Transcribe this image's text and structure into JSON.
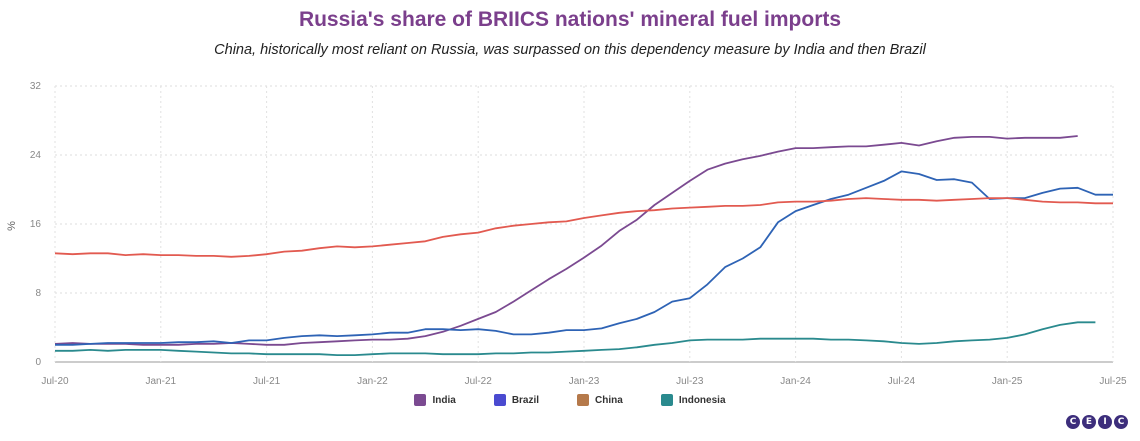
{
  "header": {
    "title": "Russia's share of BRIICS nations' mineral fuel imports",
    "subtitle": "China, historically most reliant on Russia, was surpassed on this dependency measure by India and then Brazil"
  },
  "logo": {
    "letters": [
      "C",
      "E",
      "I",
      "C"
    ],
    "colors": [
      "#3d2e7c",
      "#3d2e7c",
      "#3d2e7c",
      "#3d2e7c"
    ]
  },
  "chart_data": {
    "type": "line",
    "title": "Russia's share of BRIICS nations' mineral fuel imports",
    "ylabel": "%",
    "ylim": [
      0,
      32
    ],
    "yticks": [
      0,
      8,
      16,
      24,
      32
    ],
    "x_range_months": [
      0,
      60
    ],
    "xticks": [
      {
        "label": "Jul-20",
        "m": 0
      },
      {
        "label": "Jan-21",
        "m": 6
      },
      {
        "label": "Jul-21",
        "m": 12
      },
      {
        "label": "Jan-22",
        "m": 18
      },
      {
        "label": "Jul-22",
        "m": 24
      },
      {
        "label": "Jan-23",
        "m": 30
      },
      {
        "label": "Jul-23",
        "m": 36
      },
      {
        "label": "Jan-24",
        "m": 42
      },
      {
        "label": "Jul-24",
        "m": 48
      },
      {
        "label": "Jan-25",
        "m": 54
      },
      {
        "label": "Jul-25",
        "m": 60
      }
    ],
    "grid": true,
    "series": [
      {
        "name": "India",
        "color": "#7b4a91",
        "legend_color": "#7b4a91",
        "start": 0,
        "values": [
          2.1,
          2.2,
          2.1,
          2.1,
          2.1,
          2.0,
          2.0,
          2.0,
          2.1,
          2.1,
          2.2,
          2.1,
          2.0,
          2.0,
          2.2,
          2.3,
          2.4,
          2.5,
          2.6,
          2.6,
          2.7,
          3.0,
          3.5,
          4.2,
          5.0,
          5.8,
          7.0,
          8.3,
          9.6,
          10.8,
          12.1,
          13.5,
          15.2,
          16.5,
          18.2,
          19.6,
          21.0,
          22.3,
          23.0,
          23.5,
          23.9,
          24.4,
          24.8,
          24.8,
          24.9,
          25.0,
          25.0,
          25.2,
          25.4,
          25.1,
          25.6,
          26.0,
          26.1,
          26.1,
          25.9,
          26.0,
          26.0,
          26.0,
          26.2
        ]
      },
      {
        "name": "Brazil",
        "color": "#2e63b5",
        "legend_color": "#4a4ad0",
        "start": 0,
        "values": [
          2.0,
          2.0,
          2.1,
          2.2,
          2.2,
          2.2,
          2.2,
          2.3,
          2.3,
          2.4,
          2.2,
          2.5,
          2.5,
          2.8,
          3.0,
          3.1,
          3.0,
          3.1,
          3.2,
          3.4,
          3.4,
          3.8,
          3.8,
          3.7,
          3.8,
          3.6,
          3.2,
          3.2,
          3.4,
          3.7,
          3.7,
          3.9,
          4.5,
          5.0,
          5.8,
          7.0,
          7.4,
          9.0,
          11.0,
          12.0,
          13.3,
          16.2,
          17.5,
          18.2,
          18.9,
          19.4,
          20.2,
          21.0,
          22.1,
          21.8,
          21.1,
          21.2,
          20.8,
          18.9,
          19.0,
          19.0,
          19.6,
          20.1,
          20.2,
          19.4,
          19.4
        ]
      },
      {
        "name": "China",
        "color": "#e25a50",
        "legend_color": "#b5794a",
        "start": 0,
        "values": [
          12.6,
          12.5,
          12.6,
          12.6,
          12.4,
          12.5,
          12.4,
          12.4,
          12.3,
          12.3,
          12.2,
          12.3,
          12.5,
          12.8,
          12.9,
          13.2,
          13.4,
          13.3,
          13.4,
          13.6,
          13.8,
          14.0,
          14.5,
          14.8,
          15.0,
          15.5,
          15.8,
          16.0,
          16.2,
          16.3,
          16.7,
          17.0,
          17.3,
          17.5,
          17.6,
          17.8,
          17.9,
          18.0,
          18.1,
          18.1,
          18.2,
          18.5,
          18.6,
          18.6,
          18.7,
          18.9,
          19.0,
          18.9,
          18.8,
          18.8,
          18.7,
          18.8,
          18.9,
          19.0,
          19.0,
          18.8,
          18.6,
          18.5,
          18.5,
          18.4,
          18.4
        ]
      },
      {
        "name": "Indonesia",
        "color": "#2a8a8e",
        "legend_color": "#2a8a8e",
        "start": 0,
        "values": [
          1.3,
          1.3,
          1.4,
          1.3,
          1.4,
          1.4,
          1.4,
          1.3,
          1.2,
          1.1,
          1.0,
          1.0,
          0.9,
          0.9,
          0.9,
          0.9,
          0.8,
          0.8,
          0.9,
          1.0,
          1.0,
          1.0,
          0.9,
          0.9,
          0.9,
          1.0,
          1.0,
          1.1,
          1.1,
          1.2,
          1.3,
          1.4,
          1.5,
          1.7,
          2.0,
          2.2,
          2.5,
          2.6,
          2.6,
          2.6,
          2.7,
          2.7,
          2.7,
          2.7,
          2.6,
          2.6,
          2.5,
          2.4,
          2.2,
          2.1,
          2.2,
          2.4,
          2.5,
          2.6,
          2.8,
          3.2,
          3.8,
          4.3,
          4.6,
          4.6
        ]
      }
    ]
  }
}
